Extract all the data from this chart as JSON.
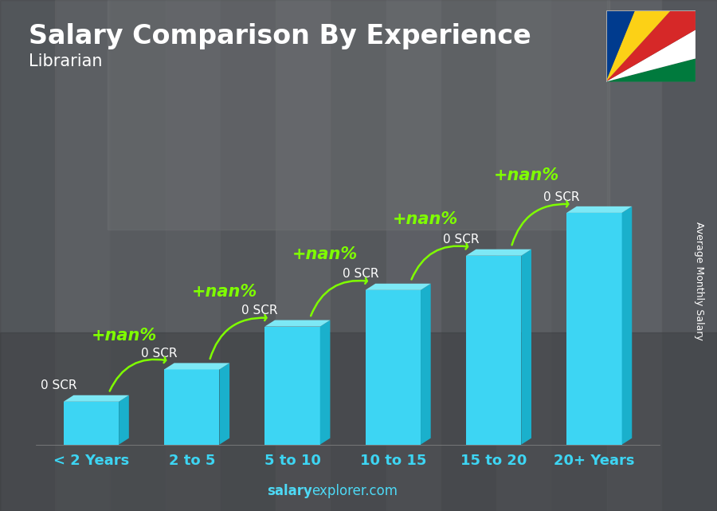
{
  "title": "Salary Comparison By Experience",
  "subtitle": "Librarian",
  "categories": [
    "< 2 Years",
    "2 to 5",
    "5 to 10",
    "10 to 15",
    "15 to 20",
    "20+ Years"
  ],
  "heights": [
    1.0,
    1.75,
    2.75,
    3.6,
    4.4,
    5.4
  ],
  "bar_color_front": "#3dd5f3",
  "bar_color_dark": "#1ab0cc",
  "bar_color_top": "#7de8f5",
  "bar_labels": [
    "0 SCR",
    "0 SCR",
    "0 SCR",
    "0 SCR",
    "0 SCR",
    "0 SCR"
  ],
  "increase_labels": [
    "+nan%",
    "+nan%",
    "+nan%",
    "+nan%",
    "+nan%"
  ],
  "ylabel": "Average Monthly Salary",
  "footer_bold": "salary",
  "footer_normal": "explorer.com",
  "footer_color_bold": "#4dd9f5",
  "footer_color_normal": "#4dd9f5",
  "title_color": "#ffffff",
  "subtitle_color": "#ffffff",
  "bar_label_color": "#ffffff",
  "increase_color": "#7fff00",
  "xtick_color": "#3dd5f3",
  "bg_colors": [
    "#5a6068",
    "#6a6e74",
    "#787c80",
    "#686c72",
    "#4a5058"
  ],
  "flag_wedge_colors": [
    "#003B8E",
    "#FCD116",
    "#D62828",
    "#FFFFFF",
    "#007A3D"
  ],
  "title_fontsize": 24,
  "subtitle_fontsize": 15,
  "bar_label_fontsize": 11,
  "increase_fontsize": 15,
  "xtick_fontsize": 13
}
